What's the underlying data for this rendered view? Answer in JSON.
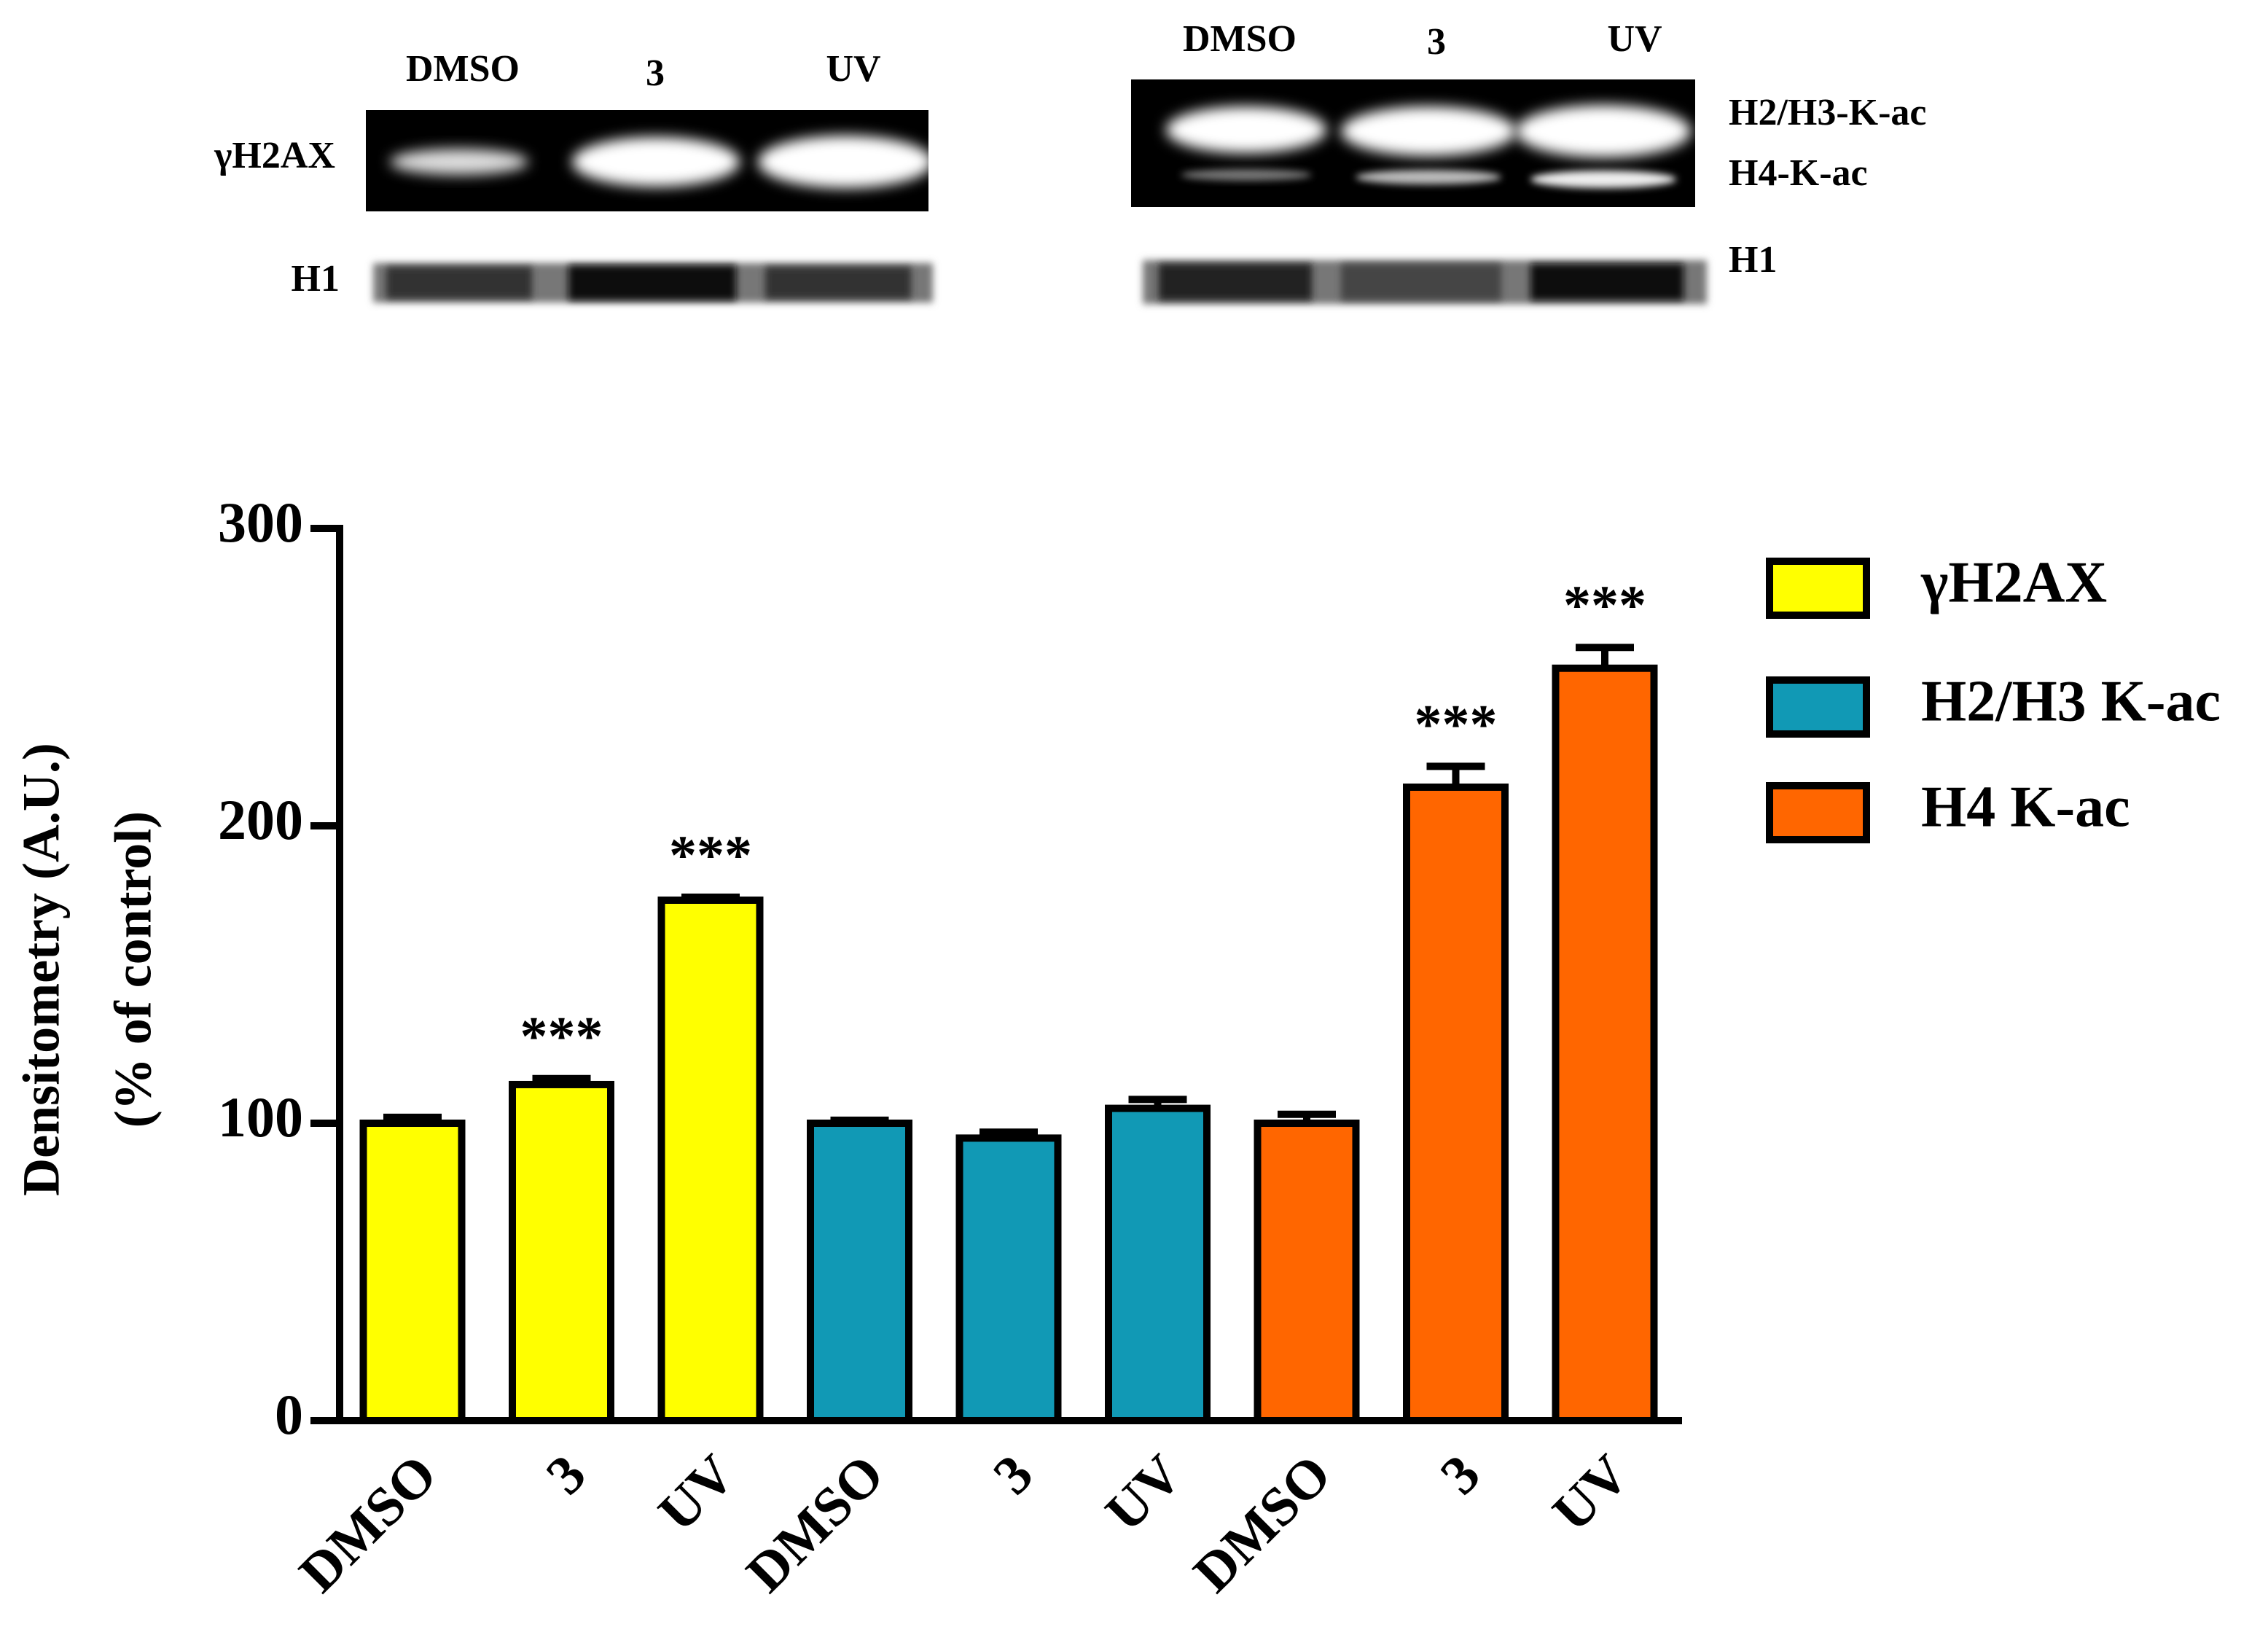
{
  "blots": {
    "left": {
      "lanes": [
        "DMSO",
        "3",
        "UV"
      ],
      "rows": [
        "γH2AX",
        "H1"
      ]
    },
    "right": {
      "lanes": [
        "DMSO",
        "3",
        "UV"
      ],
      "rows": [
        "H2/H3-K-ac",
        "H4-K-ac",
        "H1"
      ]
    }
  },
  "chart_data": {
    "type": "bar",
    "y_label": [
      "Densitometry (A.U.)",
      "(% of control)"
    ],
    "categories": [
      "DMSO",
      "3",
      "UV",
      "DMSO",
      "3",
      "UV",
      "DMSO",
      "3",
      "UV"
    ],
    "series": [
      {
        "name": "γH2AX",
        "color": "#ffff00",
        "values": [
          100,
          113,
          175,
          null,
          null,
          null,
          null,
          null,
          null
        ],
        "errors": [
          2,
          2,
          1,
          null,
          null,
          null,
          null,
          null,
          null
        ],
        "annotations": [
          null,
          "***",
          "***",
          null,
          null,
          null,
          null,
          null,
          null
        ]
      },
      {
        "name": "H2/H3 K-ac",
        "color": "#1199b5",
        "values": [
          null,
          null,
          null,
          100,
          95,
          105,
          null,
          null,
          null
        ],
        "errors": [
          null,
          null,
          null,
          1,
          2,
          3,
          null,
          null,
          null
        ],
        "annotations": [
          null,
          null,
          null,
          null,
          null,
          null,
          null,
          null,
          null
        ]
      },
      {
        "name": "H4 K-ac",
        "color": "#ff6600",
        "values": [
          null,
          null,
          null,
          null,
          null,
          null,
          100,
          213,
          253
        ],
        "errors": [
          null,
          null,
          null,
          null,
          null,
          null,
          3,
          7,
          7
        ],
        "annotations": [
          null,
          null,
          null,
          null,
          null,
          null,
          null,
          "***",
          "***"
        ]
      }
    ],
    "ylim": [
      0,
      300
    ],
    "yticks": [
      0,
      100,
      200,
      300
    ],
    "legend": "right"
  }
}
